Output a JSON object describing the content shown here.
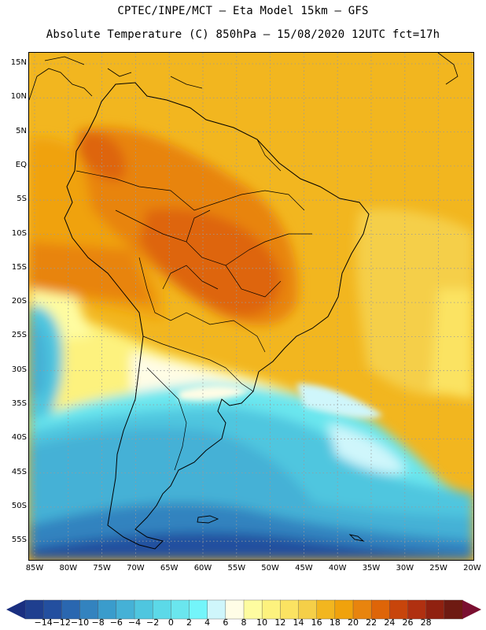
{
  "title_line1": "CPTEC/INPE/MCT –  Eta Model 15km – GFS",
  "title_line2": "Absolute Temperature (C) 850hPa – 15/08/2020 12UTC fct=17h",
  "lat_labels": [
    "15N",
    "10N",
    "5N",
    "EQ",
    "5S",
    "10S",
    "15S",
    "20S",
    "25S",
    "30S",
    "35S",
    "40S",
    "45S",
    "50S",
    "55S"
  ],
  "lon_labels": [
    "85W",
    "80W",
    "75W",
    "70W",
    "65W",
    "60W",
    "55W",
    "50W",
    "45W",
    "40W",
    "35W",
    "30W",
    "25W",
    "20W"
  ],
  "colorbar": {
    "labels": [
      "-14",
      "-12",
      "-10",
      "-8",
      "-6",
      "-4",
      "-2",
      "0",
      "2",
      "4",
      "6",
      "8",
      "10",
      "12",
      "14",
      "16",
      "18",
      "20",
      "22",
      "24",
      "26",
      "28"
    ],
    "colors": [
      "#1f3f8f",
      "#234f9f",
      "#2a67b0",
      "#3383bf",
      "#3a9ccc",
      "#45b1d6",
      "#4fc6df",
      "#5cd9e8",
      "#6ae6ee",
      "#73f5fa",
      "#cff6fb",
      "#fffde6",
      "#fefca0",
      "#fdf27e",
      "#fbe362",
      "#f5cf48",
      "#f2b61f",
      "#f0a20c",
      "#e8840e",
      "#de6508",
      "#c8450b",
      "#b03010",
      "#902110",
      "#6e1a12"
    ],
    "low_arrow_color": "#1a2f80",
    "high_arrow_color": "#7a0f30"
  }
}
